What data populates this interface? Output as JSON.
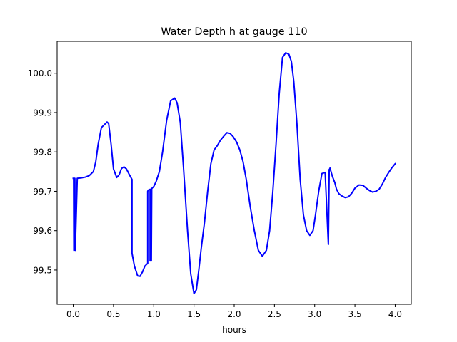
{
  "chart_data": {
    "type": "line",
    "title": "Water Depth h at gauge 110",
    "xlabel": "hours",
    "ylabel": "",
    "xlim": [
      -0.2,
      4.2
    ],
    "ylim": [
      99.413,
      100.081
    ],
    "xticks": [
      0.0,
      0.5,
      1.0,
      1.5,
      2.0,
      2.5,
      3.0,
      3.5,
      4.0
    ],
    "xtick_labels": [
      "0.0",
      "0.5",
      "1.0",
      "1.5",
      "2.0",
      "2.5",
      "3.0",
      "3.5",
      "4.0"
    ],
    "yticks": [
      99.5,
      99.6,
      99.7,
      99.8,
      99.9,
      100.0
    ],
    "ytick_labels": [
      "99.5",
      "99.6",
      "99.7",
      "99.8",
      "99.9",
      "100.0"
    ],
    "grid": false,
    "series": [
      {
        "color": "#0000ff",
        "x": [
          0.0,
          0.005,
          0.008,
          0.012,
          0.02,
          0.025,
          0.05,
          0.1,
          0.15,
          0.2,
          0.25,
          0.28,
          0.31,
          0.35,
          0.38,
          0.42,
          0.44,
          0.47,
          0.5,
          0.54,
          0.57,
          0.6,
          0.63,
          0.66,
          0.69,
          0.73,
          0.73,
          0.76,
          0.8,
          0.83,
          0.86,
          0.89,
          0.925,
          0.925,
          0.93,
          0.935,
          0.94,
          0.955,
          0.955,
          0.96,
          0.97,
          0.97,
          0.975,
          1.0,
          1.03,
          1.07,
          1.11,
          1.16,
          1.21,
          1.26,
          1.29,
          1.33,
          1.37,
          1.42,
          1.46,
          1.5,
          1.53,
          1.56,
          1.59,
          1.63,
          1.67,
          1.71,
          1.75,
          1.79,
          1.83,
          1.87,
          1.91,
          1.95,
          1.99,
          2.03,
          2.07,
          2.11,
          2.15,
          2.2,
          2.25,
          2.3,
          2.35,
          2.4,
          2.44,
          2.48,
          2.52,
          2.56,
          2.6,
          2.64,
          2.68,
          2.71,
          2.74,
          2.78,
          2.82,
          2.86,
          2.9,
          2.94,
          2.98,
          3.01,
          3.05,
          3.09,
          3.13,
          3.17,
          3.18,
          3.18,
          3.19,
          3.19,
          3.2,
          3.22,
          3.25,
          3.27,
          3.3,
          3.34,
          3.38,
          3.42,
          3.46,
          3.5,
          3.55,
          3.6,
          3.64,
          3.68,
          3.72,
          3.76,
          3.8,
          3.84,
          3.88,
          3.92,
          3.96,
          4.0
        ],
        "y": [
          99.733,
          99.733,
          99.55,
          99.733,
          99.733,
          99.55,
          99.733,
          99.734,
          99.736,
          99.74,
          99.75,
          99.775,
          99.82,
          99.862,
          99.868,
          99.876,
          99.872,
          99.82,
          99.757,
          99.735,
          99.742,
          99.758,
          99.762,
          99.757,
          99.745,
          99.73,
          99.543,
          99.51,
          99.485,
          99.484,
          99.495,
          99.51,
          99.517,
          99.7,
          99.702,
          99.703,
          99.704,
          99.705,
          99.523,
          99.705,
          99.705,
          99.523,
          99.707,
          99.712,
          99.725,
          99.75,
          99.8,
          99.88,
          99.93,
          99.937,
          99.925,
          99.875,
          99.76,
          99.6,
          99.49,
          99.44,
          99.45,
          99.5,
          99.555,
          99.62,
          99.7,
          99.77,
          99.805,
          99.816,
          99.83,
          99.84,
          99.849,
          99.847,
          99.838,
          99.825,
          99.805,
          99.775,
          99.73,
          99.66,
          99.6,
          99.55,
          99.535,
          99.55,
          99.6,
          99.7,
          99.82,
          99.95,
          100.04,
          100.052,
          100.048,
          100.03,
          99.98,
          99.87,
          99.73,
          99.64,
          99.6,
          99.588,
          99.6,
          99.64,
          99.7,
          99.745,
          99.748,
          99.565,
          99.748,
          99.755,
          99.758,
          99.759,
          99.752,
          99.738,
          99.722,
          99.706,
          99.694,
          99.688,
          99.684,
          99.686,
          99.695,
          99.708,
          99.716,
          99.715,
          99.708,
          99.702,
          99.698,
          99.7,
          99.705,
          99.718,
          99.735,
          99.748,
          99.76,
          99.77
        ]
      }
    ]
  }
}
